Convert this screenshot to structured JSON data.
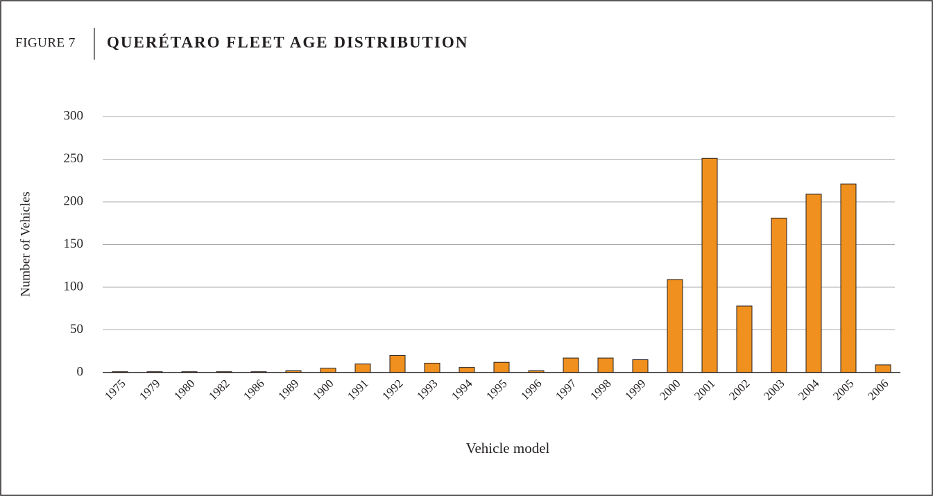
{
  "chart_data": {
    "type": "bar",
    "figure_label": "FIGURE 7",
    "title": "QUERÉTARO FLEET AGE DISTRIBUTION",
    "x_label": "Vehicle model",
    "y_label": "Number of Vehicles",
    "categories": [
      "1975",
      "1979",
      "1980",
      "1982",
      "1986",
      "1989",
      "1900",
      "1991",
      "1992",
      "1993",
      "1994",
      "1995",
      "1996",
      "1997",
      "1998",
      "1999",
      "2000",
      "2001",
      "2002",
      "2003",
      "2004",
      "2005",
      "2006"
    ],
    "values": [
      1,
      1,
      1,
      1,
      1,
      2,
      5,
      10,
      20,
      11,
      6,
      12,
      2,
      17,
      17,
      15,
      109,
      251,
      78,
      181,
      209,
      221,
      9
    ],
    "color": "#f0901e",
    "ylim": [
      0,
      300
    ],
    "yticks": [
      0,
      50,
      100,
      150,
      200,
      250,
      300
    ],
    "grid": true
  }
}
